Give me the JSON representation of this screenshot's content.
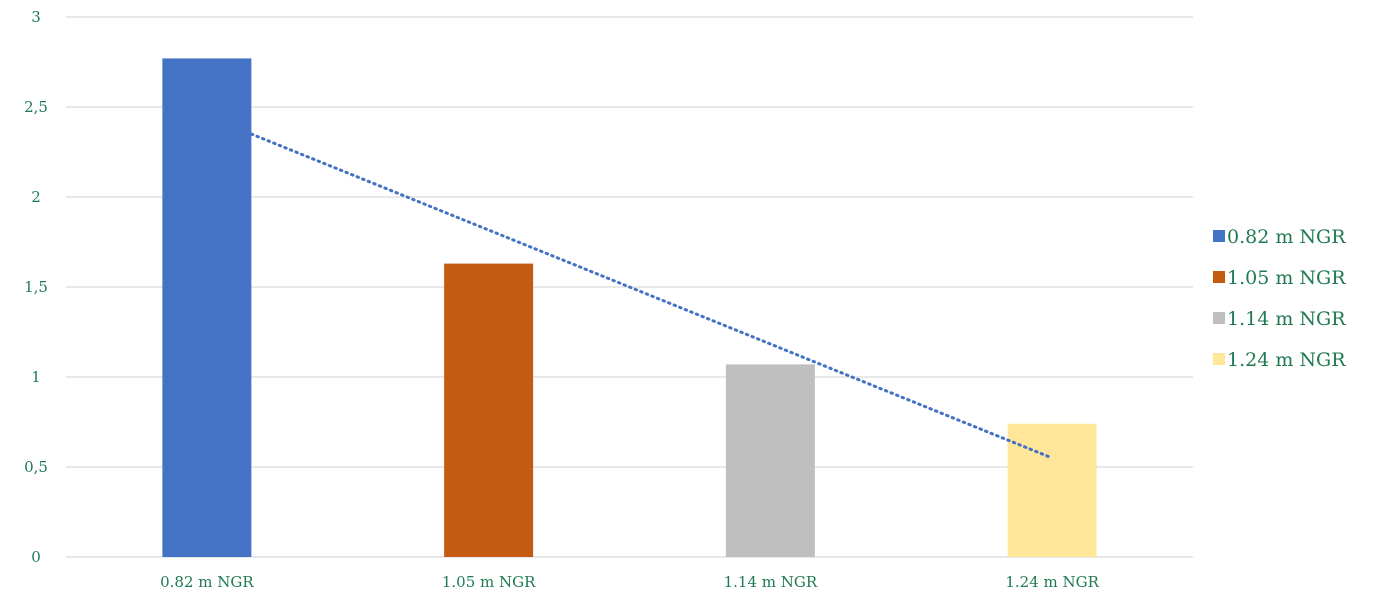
{
  "chart_data": {
    "type": "bar",
    "title": "",
    "xlabel": "",
    "ylabel": "",
    "categories": [
      "0.82 m NGR",
      "1.05 m NGR",
      "1.14 m NGR",
      "1.24 m NGR"
    ],
    "values": [
      2.77,
      1.63,
      1.07,
      0.74
    ],
    "ylim": [
      0,
      3
    ],
    "y_ticks": [
      0,
      0.5,
      1,
      1.5,
      2,
      2.5,
      3
    ],
    "y_tick_labels": [
      "0",
      "0,5",
      "1",
      "1,5",
      "2",
      "2,5",
      "3"
    ],
    "bar_colors": [
      "#4472C4",
      "#C55A11",
      "#BFBFBF",
      "#FFE699"
    ],
    "grid": true,
    "trendline": {
      "type": "linear",
      "style": "dotted",
      "color": "#4472C4",
      "start_value": 2.45,
      "end_value": 0.55
    },
    "legend": {
      "position": "right",
      "entries": [
        "0.82 m NGR",
        "1.05 m NGR",
        "1.14 m NGR",
        "1.24 m NGR"
      ]
    },
    "text_color": "#1F7A52",
    "gridline_color": "#D9D9D9"
  }
}
